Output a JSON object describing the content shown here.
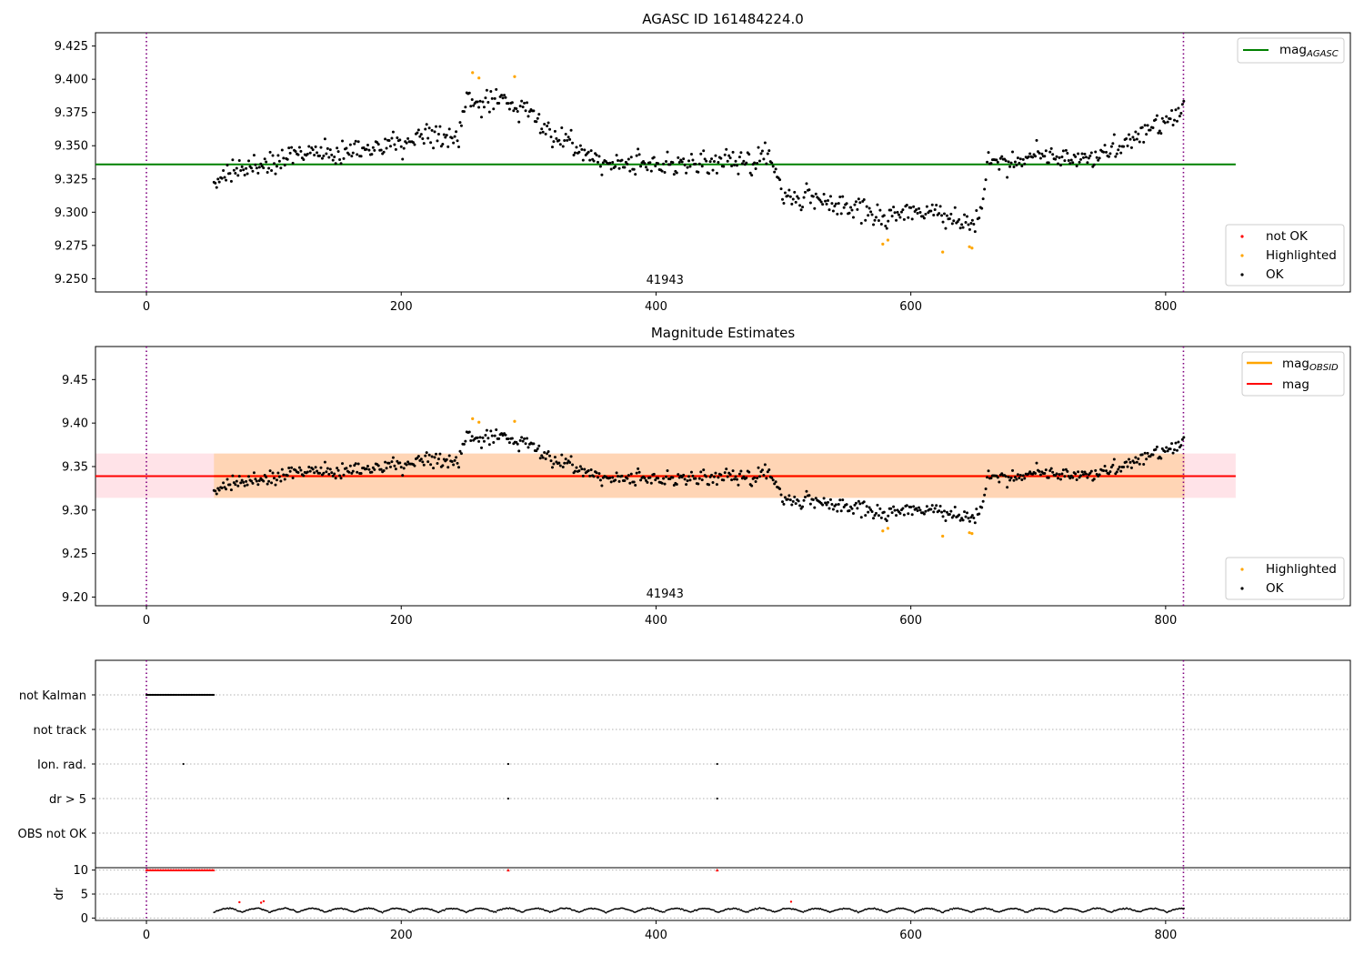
{
  "chart_data": [
    {
      "type": "scatter",
      "title": "AGASC ID 161484224.0",
      "x_ticks": [
        0,
        200,
        400,
        600,
        800
      ],
      "y_ticks": [
        "9.250",
        "9.275",
        "9.300",
        "9.325",
        "9.350",
        "9.375",
        "9.400",
        "9.425"
      ],
      "xlim": [
        -40,
        945
      ],
      "ylim": [
        9.24,
        9.435
      ],
      "reference_lines": [
        {
          "name": "mag",
          "subscript": "AGASC",
          "value": 9.336,
          "color": "#008000",
          "x_range": [
            -40,
            855
          ]
        }
      ],
      "vlines": [
        0,
        814
      ],
      "obsid_label": "41943",
      "legend_position": "upper-right / lower-right",
      "legend": [
        {
          "label": "not OK",
          "color": "#ff0000"
        },
        {
          "label": "Highlighted",
          "color": "#ffa500"
        },
        {
          "label": "OK",
          "color": "#000000"
        }
      ],
      "series": [
        {
          "label": "OK",
          "color": "#000000",
          "x_range": [
            53,
            815
          ],
          "trend": [
            [
              53,
              9.322
            ],
            [
              80,
              9.334
            ],
            [
              120,
              9.344
            ],
            [
              170,
              9.347
            ],
            [
              200,
              9.352
            ],
            [
              230,
              9.355
            ],
            [
              245,
              9.356
            ],
            [
              250,
              9.383
            ],
            [
              280,
              9.384
            ],
            [
              305,
              9.375
            ],
            [
              310,
              9.363
            ],
            [
              340,
              9.348
            ],
            [
              360,
              9.337
            ],
            [
              420,
              9.336
            ],
            [
              470,
              9.338
            ],
            [
              490,
              9.343
            ],
            [
              500,
              9.312
            ],
            [
              540,
              9.307
            ],
            [
              580,
              9.296
            ],
            [
              600,
              9.302
            ],
            [
              640,
              9.294
            ],
            [
              655,
              9.297
            ],
            [
              660,
              9.338
            ],
            [
              680,
              9.336
            ],
            [
              700,
              9.345
            ],
            [
              740,
              9.339
            ],
            [
              770,
              9.353
            ],
            [
              800,
              9.368
            ],
            [
              815,
              9.377
            ]
          ]
        },
        {
          "label": "Highlighted",
          "color": "#ffa500",
          "points": [
            [
              256,
              9.405
            ],
            [
              261,
              9.401
            ],
            [
              289,
              9.402
            ],
            [
              578,
              9.276
            ],
            [
              582,
              9.279
            ],
            [
              625,
              9.27
            ],
            [
              646,
              9.274
            ],
            [
              648,
              9.273
            ]
          ]
        }
      ]
    },
    {
      "type": "scatter",
      "title": "Magnitude Estimates",
      "x_ticks": [
        0,
        200,
        400,
        600,
        800
      ],
      "y_ticks": [
        "9.20",
        "9.25",
        "9.30",
        "9.35",
        "9.40",
        "9.45"
      ],
      "xlim": [
        -40,
        945
      ],
      "ylim": [
        9.19,
        9.488
      ],
      "reference_lines": [
        {
          "name": "mag",
          "subscript": "OBSID",
          "color": "#ffa500",
          "value": 9.339,
          "band": [
            9.314,
            9.365
          ],
          "x_range": [
            53,
            815
          ]
        },
        {
          "name": "mag",
          "color": "#ff0000",
          "value": 9.339,
          "band": [
            9.314,
            9.365
          ],
          "x_range": [
            -40,
            855
          ]
        }
      ],
      "vlines": [
        0,
        814
      ],
      "obsid_label": "41943",
      "legend": [
        {
          "label": "Highlighted",
          "color": "#ffa500"
        },
        {
          "label": "OK",
          "color": "#000000"
        }
      ]
    },
    {
      "type": "scatter",
      "title": "",
      "categories": [
        "not Kalman",
        "not track",
        "Ion. rad.",
        "dr > 5",
        "OBS not OK"
      ],
      "x_ticks": [
        0,
        200,
        400,
        600,
        800
      ],
      "xlim": [
        -40,
        945
      ],
      "vlines": [
        0,
        814
      ],
      "flags": {
        "not Kalman": {
          "x_range": [
            0,
            53
          ]
        },
        "not track": {
          "points": []
        },
        "Ion. rad.": {
          "points": [
            29,
            284,
            448
          ]
        },
        "dr > 5": {
          "points": [
            284,
            448
          ]
        },
        "OBS not OK": {
          "points": []
        }
      }
    },
    {
      "type": "scatter",
      "ylabel": "dr",
      "y_ticks": [
        "0",
        "5",
        "10"
      ],
      "x_ticks": [
        0,
        200,
        400,
        600,
        800
      ],
      "xlim": [
        -40,
        945
      ],
      "ylim": [
        -0.5,
        10.5
      ],
      "vlines": [
        0,
        814
      ],
      "clipped": {
        "value": 10,
        "x_range": [
          0,
          53
        ],
        "points": [
          284,
          448
        ],
        "color": "#ff0000"
      },
      "red_points": [
        [
          73,
          3.3
        ],
        [
          90,
          3.2
        ],
        [
          92,
          3.5
        ],
        [
          506,
          3.4
        ]
      ],
      "black_series": {
        "x_range": [
          53,
          815
        ],
        "typical_range": [
          0.2,
          2.8
        ]
      }
    }
  ]
}
